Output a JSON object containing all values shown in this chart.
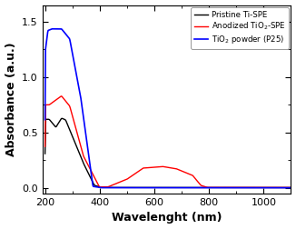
{
  "title": "",
  "xlabel": "Wavelenght (nm)",
  "ylabel": "Absorbance (a.u.)",
  "xlim": [
    190,
    1100
  ],
  "ylim": [
    -0.05,
    1.65
  ],
  "yticks": [
    0.0,
    0.5,
    1.0,
    1.5
  ],
  "xticks": [
    200,
    400,
    600,
    800,
    1000
  ],
  "legend": [
    "Pristine Ti-SPE",
    "Anodized TiO$_2$-SPE",
    "TiO$_2$ powder (P25)"
  ],
  "colors": [
    "black",
    "red",
    "blue"
  ],
  "background": "#ffffff"
}
